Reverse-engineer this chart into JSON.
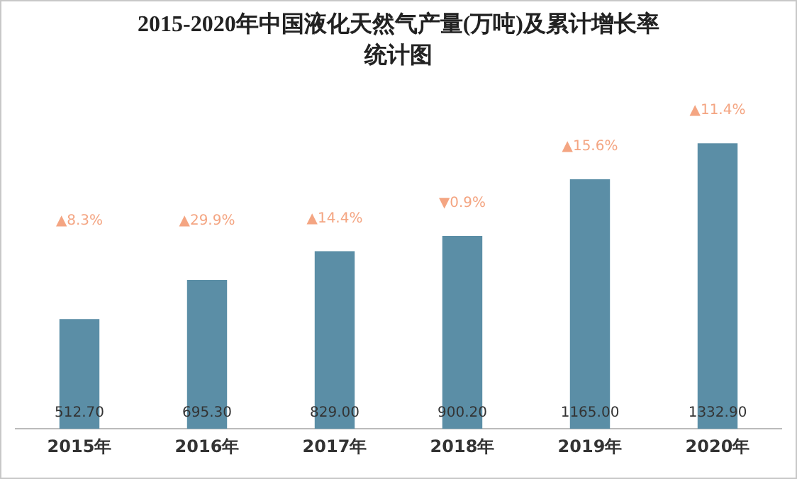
{
  "chart_data": {
    "type": "bar",
    "title": "2015-2020年中国液化天然气产量(万吨)及累计增长率统计图",
    "categories": [
      "2015年",
      "2016年",
      "2017年",
      "2018年",
      "2019年",
      "2020年"
    ],
    "values": [
      512.7,
      695.3,
      829.0,
      900.2,
      1165.0,
      1332.9
    ],
    "value_labels": [
      "512.70",
      "695.30",
      "829.00",
      "900.20",
      "1165.00",
      "1332.90"
    ],
    "color": "#5b8ea6",
    "annotations": [
      "▲8.3%",
      "▲29.9%",
      "▲14.4%",
      "▼0.9%",
      "▲15.6%",
      "▲11.4%"
    ]
  }
}
